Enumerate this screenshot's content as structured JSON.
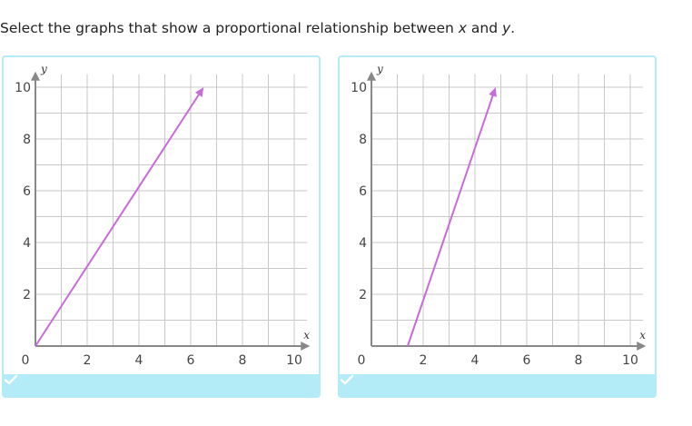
{
  "prompt": {
    "text_before": "Select the graphs that show a proportional relationship between ",
    "var_x": "x",
    "text_middle": " and ",
    "var_y": "y",
    "text_after": "."
  },
  "colors": {
    "line": "#c86ad8",
    "grid": "#c8c8c8",
    "axis": "#888888",
    "card_border": "#b3ebf7",
    "footer": "#b3ebf7",
    "check": "#ffffff"
  },
  "graphs": [
    {
      "x_axis_label": "x",
      "y_axis_label": "y",
      "x_tick_labels": [
        "0",
        "2",
        "4",
        "6",
        "8",
        "10"
      ],
      "y_tick_labels": [
        "2",
        "4",
        "6",
        "8",
        "10"
      ],
      "xlim": [
        0,
        10.5
      ],
      "ylim": [
        0,
        10.5
      ],
      "line": {
        "from": [
          0,
          0
        ],
        "to": [
          6.5,
          10
        ]
      },
      "selected": true,
      "footer_icon": "check-icon"
    },
    {
      "x_axis_label": "x",
      "y_axis_label": "y",
      "x_tick_labels": [
        "0",
        "2",
        "4",
        "6",
        "8",
        "10"
      ],
      "y_tick_labels": [
        "2",
        "4",
        "6",
        "8",
        "10"
      ],
      "xlim": [
        0,
        10.5
      ],
      "ylim": [
        0,
        10.5
      ],
      "line": {
        "from": [
          1.4,
          0
        ],
        "to": [
          4.8,
          10
        ]
      },
      "selected": false,
      "footer_icon": "check-icon"
    }
  ]
}
